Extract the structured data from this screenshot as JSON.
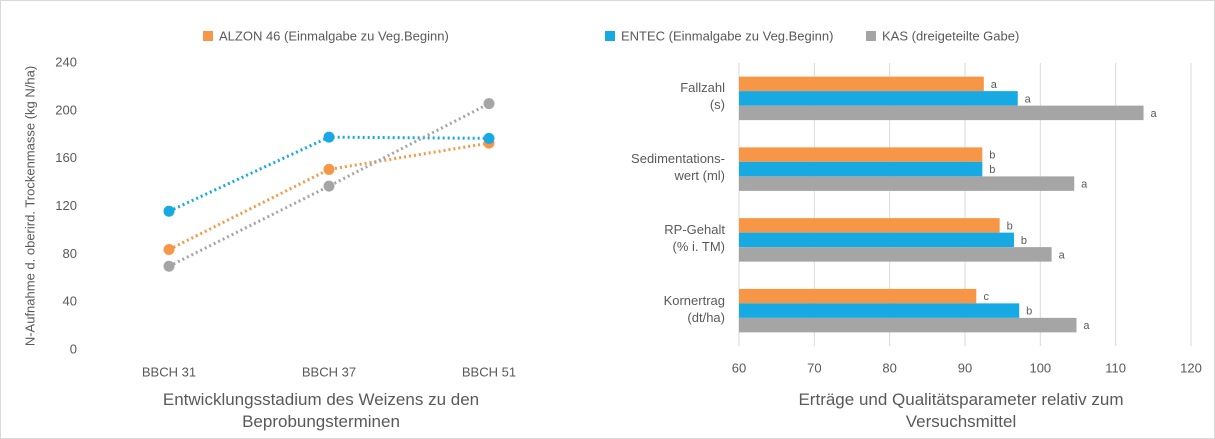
{
  "legend": [
    {
      "name": "ALZON 46 (Einmalgabe zu Veg.Beginn)",
      "color": "#f79646"
    },
    {
      "name": "ENTEC (Einmalgabe zu Veg.Beginn)",
      "color": "#17a9e1"
    },
    {
      "name": "KAS (dreigeteilte Gabe)",
      "color": "#a5a5a5"
    }
  ],
  "chart_data": [
    {
      "type": "line",
      "ylabel": "N-Aufnahme d. oberird. Trockenmasse (kg N/ha)",
      "xlabel": "Entwicklungsstadium des Weizens zu den\nBeprobungsterminen",
      "categories": [
        "BBCH 31",
        "BBCH 37",
        "BBCH 51"
      ],
      "series": [
        {
          "values": [
            84,
            151,
            173
          ]
        },
        {
          "values": [
            116,
            178,
            177
          ]
        },
        {
          "values": [
            70,
            137,
            206
          ]
        }
      ],
      "ylim": [
        0,
        240
      ],
      "yticks": [
        0,
        40,
        80,
        120,
        160,
        200,
        240
      ],
      "grid": false
    },
    {
      "type": "bar",
      "orientation": "horizontal",
      "xlabel": "Erträge und Qualitätsparameter relativ zum\nVersuchsmittel",
      "categories": [
        "Fallzahl\n(s)",
        "Sedimentations-\nwert (ml)",
        "RP-Gehalt\n(% i. TM)",
        "Kornertrag\n(dt/ha)"
      ],
      "series": [
        {
          "values": [
            92.5,
            92.3,
            94.6,
            91.5
          ],
          "letters": [
            "a",
            "b",
            "b",
            "c"
          ]
        },
        {
          "values": [
            97,
            92.3,
            96.5,
            97.2
          ],
          "letters": [
            "a",
            "b",
            "b",
            "b"
          ]
        },
        {
          "values": [
            113.7,
            104.5,
            101.5,
            104.8
          ],
          "letters": [
            "a",
            "a",
            "a",
            "a"
          ]
        }
      ],
      "xlim": [
        60,
        120
      ],
      "xticks": [
        60,
        70,
        80,
        90,
        100,
        110,
        120
      ],
      "grid": true
    }
  ]
}
